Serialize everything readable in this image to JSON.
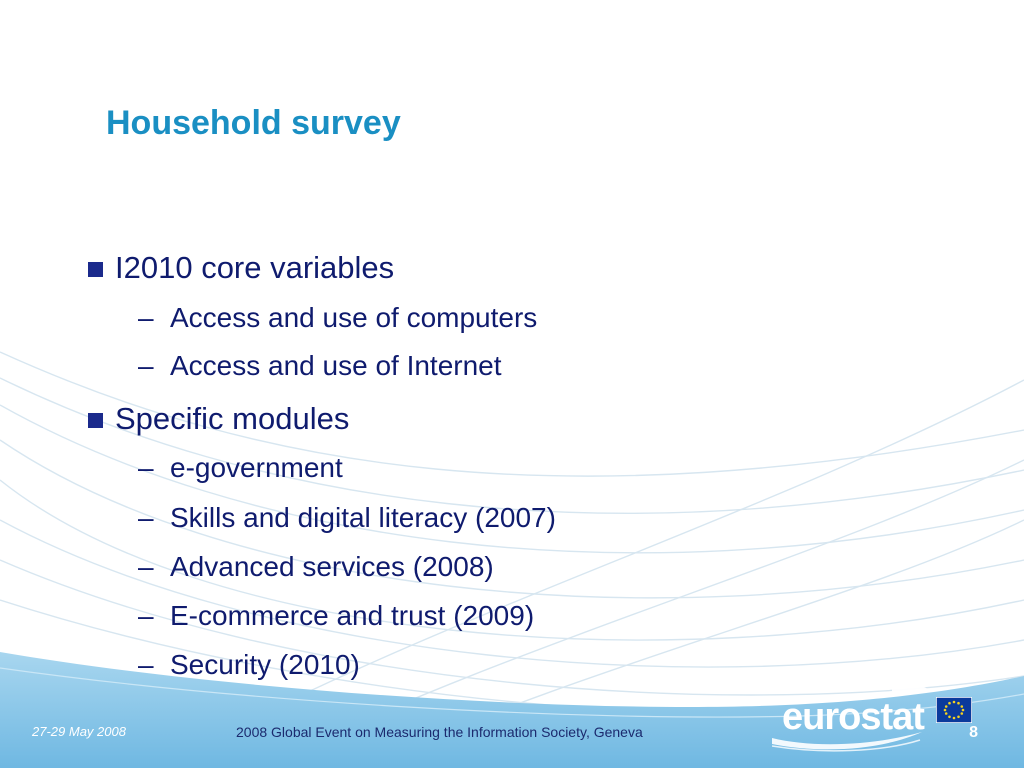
{
  "slide": {
    "title": "Household survey",
    "bullets": [
      {
        "label": "I2010 core variables",
        "subitems": [
          "Access and use of computers",
          "Access and use of Internet"
        ]
      },
      {
        "label": "Specific modules",
        "subitems": [
          "e-government",
          "Skills and digital literacy (2007)",
          "Advanced services (2008)",
          "E-commerce and trust (2009)",
          "Security (2010)"
        ]
      }
    ],
    "sub_marker": "–"
  },
  "footer": {
    "date": "27-29 May 2008",
    "event": "2008 Global Event on Measuring the Information Society, Geneva",
    "page_number": "8"
  },
  "logo": {
    "text": "eurostat"
  },
  "colors": {
    "title": "#1a8fc3",
    "body_text": "#0f1b6e",
    "bullet_square": "#1b2a8c",
    "footer_band": "#7fc1e6",
    "eu_flag_blue": "#0b3a9c",
    "eu_flag_star": "#f5d21e"
  },
  "icons": {
    "bullet": "square-bullet-icon",
    "logo_swoosh": "eurostat-swoosh-icon",
    "flag": "eu-flag-icon"
  }
}
